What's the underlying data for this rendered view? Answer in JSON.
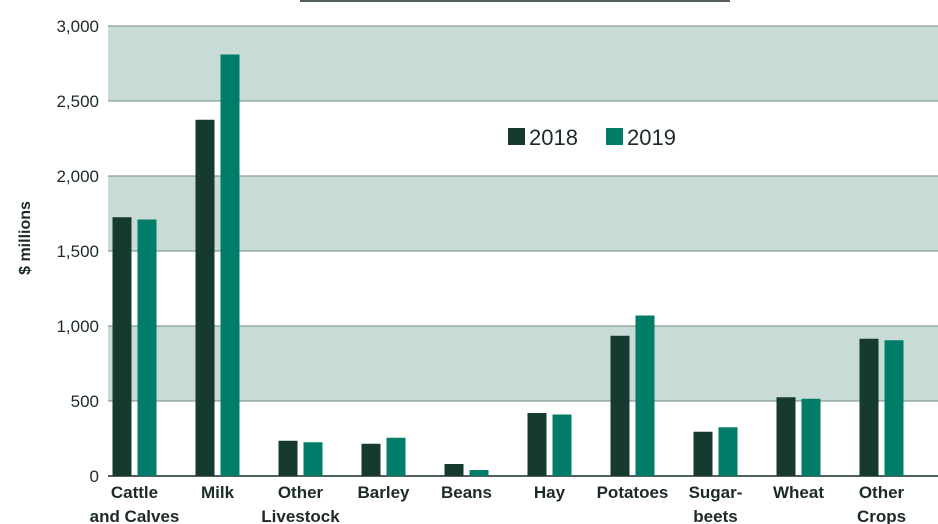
{
  "chart_data": {
    "type": "bar",
    "ylabel": "$ millions",
    "ylim": [
      0,
      3000
    ],
    "yticks": [
      0,
      500,
      1000,
      1500,
      2000,
      2500,
      3000
    ],
    "ytick_labels": [
      "0",
      "500",
      "1,000",
      "1,500",
      "2,000",
      "2,500",
      "3,000"
    ],
    "categories": [
      [
        "Cattle",
        "and Calves"
      ],
      [
        "Milk"
      ],
      [
        "Other",
        "Livestock"
      ],
      [
        "Barley"
      ],
      [
        "Beans"
      ],
      [
        "Hay"
      ],
      [
        "Potatoes"
      ],
      [
        "Sugar-",
        "beets"
      ],
      [
        "Wheat"
      ],
      [
        "Other",
        "Crops"
      ]
    ],
    "series": [
      {
        "name": "2018",
        "color": "#163a30",
        "values": [
          1725,
          2375,
          235,
          215,
          80,
          420,
          935,
          295,
          525,
          915
        ]
      },
      {
        "name": "2019",
        "color": "#007d69",
        "values": [
          1710,
          2810,
          225,
          255,
          40,
          410,
          1070,
          325,
          515,
          905
        ]
      }
    ],
    "legend_position": "top-right",
    "band_color": "#c8dbd6",
    "gridlines": true
  }
}
